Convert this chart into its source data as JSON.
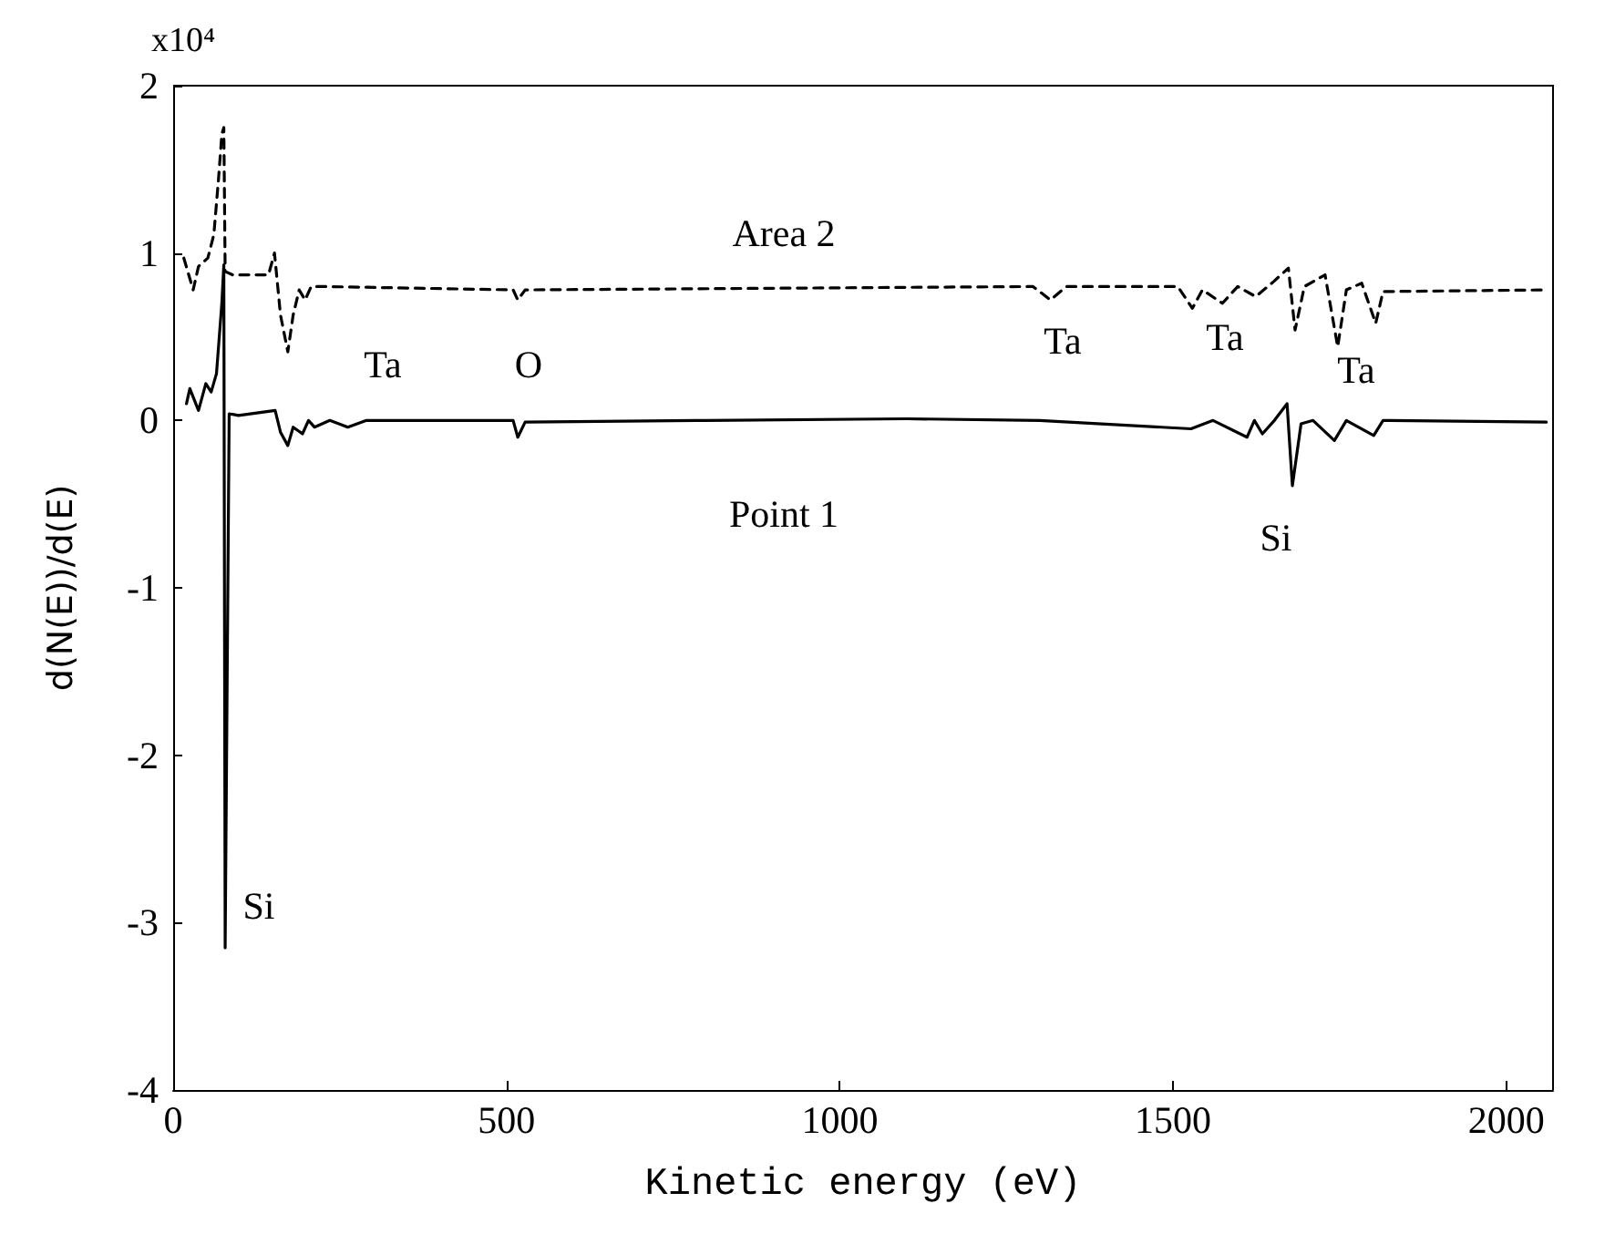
{
  "chart_data": {
    "type": "line",
    "xlabel": "Kinetic energy (eV)",
    "ylabel": "d(N(E))/d(E)",
    "x": [
      20,
      25,
      38,
      49,
      57,
      65,
      73,
      76,
      78,
      84,
      98,
      153,
      161,
      172,
      180,
      194,
      203,
      212,
      235,
      262,
      290,
      510,
      517,
      528,
      800,
      1100,
      1300,
      1527,
      1560,
      1611,
      1622,
      1634,
      1652,
      1671,
      1679,
      1692,
      1710,
      1742,
      1760,
      1801,
      1815,
      2060
    ],
    "series": [
      {
        "color": "#000000",
        "line_style": "solid",
        "values": [
          0.1,
          0.19,
          0.06,
          0.22,
          0.17,
          0.28,
          0.7,
          0.93,
          -3.15,
          0.04,
          0.03,
          0.06,
          -0.07,
          -0.15,
          -0.04,
          -0.08,
          0,
          -0.04,
          0,
          -0.04,
          0,
          0,
          -0.1,
          -0.01,
          0,
          0.01,
          0,
          -0.05,
          0,
          -0.1,
          0,
          -0.08,
          0,
          0.1,
          -0.39,
          -0.02,
          0,
          -0.12,
          0,
          -0.09,
          0,
          -0.01
        ]
      },
      {
        "color": "#000000",
        "line_style": "dashed",
        "x": [
          16,
          30,
          38,
          52,
          61,
          68,
          73,
          76,
          78,
          89,
          143,
          152,
          161,
          172,
          180,
          189,
          198,
          207,
          226,
          510,
          517,
          528,
          1290,
          1316,
          1340,
          1507,
          1529,
          1544,
          1574,
          1597,
          1624,
          1651,
          1673,
          1683,
          1697,
          1728,
          1747,
          1760,
          1783,
          1804,
          1815,
          2060
        ],
        "values": [
          0.97,
          0.78,
          0.92,
          0.97,
          1.11,
          1.44,
          1.71,
          1.75,
          0.89,
          0.87,
          0.87,
          1.0,
          0.63,
          0.41,
          0.63,
          0.78,
          0.72,
          0.8,
          0.8,
          0.78,
          0.72,
          0.78,
          0.8,
          0.72,
          0.8,
          0.8,
          0.67,
          0.78,
          0.7,
          0.8,
          0.74,
          0.83,
          0.91,
          0.54,
          0.8,
          0.87,
          0.44,
          0.78,
          0.82,
          0.58,
          0.77,
          0.78
        ]
      }
    ],
    "xlim": [
      0,
      2070
    ],
    "xticks": [
      0,
      500,
      1000,
      1500,
      2000
    ],
    "ylim": [
      -4,
      2
    ],
    "yticks": [
      -4,
      -3,
      -2,
      -1,
      0,
      1,
      2
    ],
    "grid": false,
    "marker": "none",
    "annotations": [
      "x10⁴",
      "Area 2",
      "Point 1",
      "Ta",
      "O",
      "Ta",
      "Ta",
      "Ta",
      "Si",
      "Si"
    ]
  }
}
